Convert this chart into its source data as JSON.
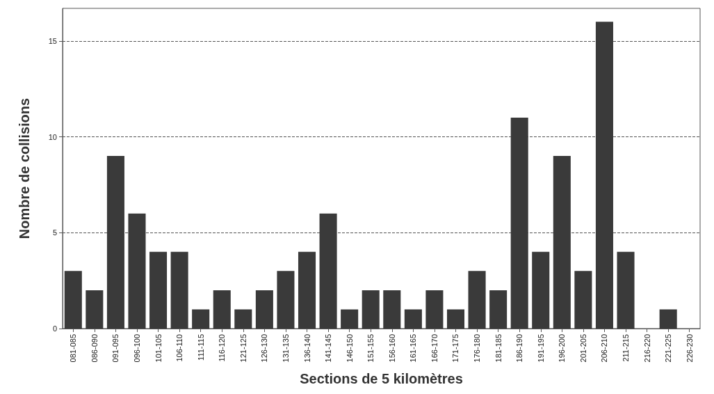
{
  "chart_data": {
    "type": "bar",
    "xlabel": "Sections de 5 kilomètres",
    "ylabel": "Nombre de collisions",
    "categories": [
      "081-085",
      "086-090",
      "091-095",
      "096-100",
      "101-105",
      "106-110",
      "111-115",
      "116-120",
      "121-125",
      "126-130",
      "131-135",
      "136-140",
      "141-145",
      "146-150",
      "151-155",
      "156-160",
      "161-165",
      "166-170",
      "171-175",
      "176-180",
      "181-185",
      "186-190",
      "191-195",
      "196-200",
      "201-205",
      "206-210",
      "211-215",
      "216-220",
      "221-225",
      "226-230"
    ],
    "values": [
      3,
      2,
      9,
      6,
      4,
      4,
      1,
      2,
      1,
      2,
      3,
      4,
      6,
      1,
      2,
      2,
      1,
      2,
      1,
      3,
      2,
      11,
      4,
      9,
      3,
      16,
      4,
      0,
      1,
      0
    ],
    "color": "#3a3a3a",
    "ylim": [
      0,
      16.7
    ],
    "yticks": [
      0,
      5,
      10,
      15
    ],
    "grid": "y"
  }
}
